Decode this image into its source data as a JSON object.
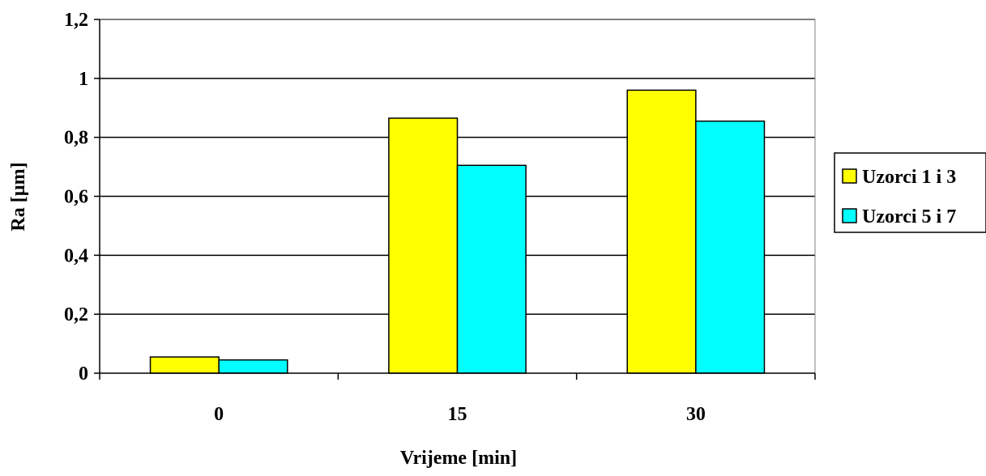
{
  "chart_data": {
    "type": "bar",
    "categories": [
      "0",
      "15",
      "30"
    ],
    "series": [
      {
        "name": "Uzorci 1 i 3",
        "color": "#ffff00",
        "values": [
          0.055,
          0.865,
          0.96
        ]
      },
      {
        "name": "Uzorci 5 i 7",
        "color": "#00ffff",
        "values": [
          0.045,
          0.705,
          0.855
        ]
      }
    ],
    "xlabel": "Vrijeme [min]",
    "ylabel": "Ra [µm]",
    "ylim": [
      0,
      1.2
    ],
    "yticks": [
      {
        "value": 0,
        "label": "0"
      },
      {
        "value": 0.2,
        "label": "0,2"
      },
      {
        "value": 0.4,
        "label": "0,4"
      },
      {
        "value": 0.6,
        "label": "0,6"
      },
      {
        "value": 0.8,
        "label": "0,8"
      },
      {
        "value": 1,
        "label": "1"
      },
      {
        "value": 1.2,
        "label": "1,2"
      }
    ],
    "grid": true,
    "legend_position": "right"
  }
}
